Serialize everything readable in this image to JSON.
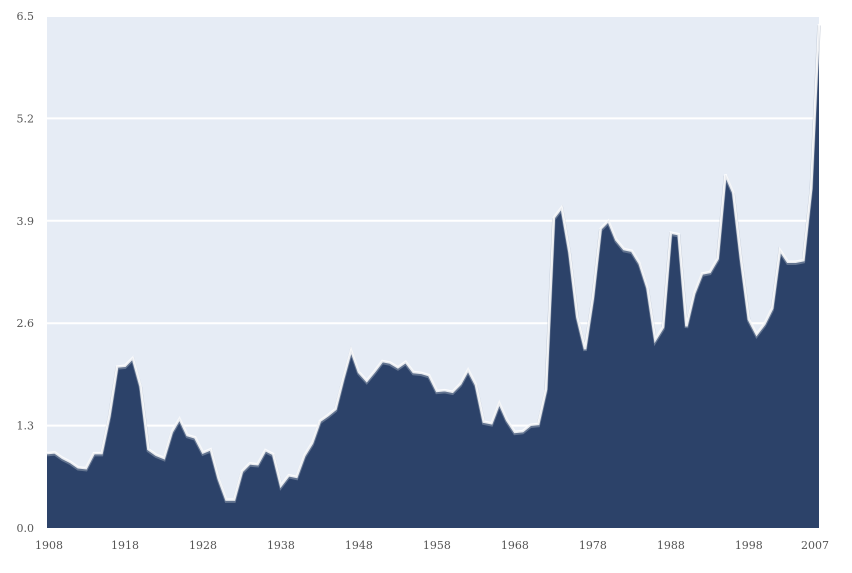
{
  "chart_data": {
    "type": "area",
    "title": "",
    "xlabel": "",
    "ylabel": "",
    "xlim": [
      1908,
      2007
    ],
    "ylim": [
      0,
      6.5
    ],
    "x_ticks": [
      "1908",
      "1918",
      "1928",
      "1938",
      "1948",
      "1958",
      "1968",
      "1978",
      "1988",
      "1998",
      "2007"
    ],
    "x_tick_values": [
      1908,
      1918,
      1928,
      1938,
      1948,
      1958,
      1968,
      1978,
      1988,
      1998,
      2007
    ],
    "y_ticks": [
      "0.0",
      "1.3",
      "2.6",
      "3.9",
      "5.2",
      "6.5"
    ],
    "y_tick_values": [
      0,
      1.3,
      2.6,
      3.9,
      5.2,
      6.5
    ],
    "grid": true,
    "colors": {
      "area": "#2c4269",
      "plot_background": "#e6ecf5",
      "grid": "#ffffff"
    },
    "x": [
      1908,
      1909,
      1910,
      1911,
      1912,
      1913,
      1914,
      1915,
      1916,
      1917,
      1918,
      1919,
      1920,
      1921,
      1922,
      1923,
      1924,
      1925,
      1926,
      1927,
      1928,
      1929,
      1930,
      1931,
      1932,
      1933,
      1934,
      1935,
      1936,
      1937,
      1938,
      1939,
      1940,
      1941,
      1942,
      1943,
      1944,
      1945,
      1946,
      1947,
      1948,
      1949,
      1950,
      1951,
      1952,
      1953,
      1954,
      1955,
      1956,
      1957,
      1958,
      1959,
      1960,
      1961,
      1962,
      1963,
      1964,
      1965,
      1966,
      1967,
      1968,
      1969,
      1970,
      1971,
      1972,
      1973,
      1974,
      1975,
      1976,
      1977,
      1978,
      1979,
      1980,
      1981,
      1982,
      1983,
      1984,
      1985,
      1986,
      1987,
      1988,
      1989,
      1990,
      1991,
      1992,
      1993,
      1994,
      1995,
      1996,
      1997,
      1998,
      1999,
      2000,
      2001,
      2002,
      2003,
      2004,
      2005,
      2006,
      2007
    ],
    "values": [
      0.95,
      0.96,
      0.89,
      0.84,
      0.77,
      0.76,
      0.95,
      0.95,
      1.42,
      2.05,
      2.06,
      2.16,
      1.8,
      1.0,
      0.93,
      0.89,
      1.22,
      1.39,
      1.18,
      1.15,
      0.96,
      1.0,
      0.63,
      0.36,
      0.36,
      0.72,
      0.82,
      0.81,
      0.99,
      0.94,
      0.54,
      0.67,
      0.65,
      0.92,
      1.08,
      1.36,
      1.43,
      1.51,
      1.9,
      2.26,
      1.98,
      1.87,
      1.99,
      2.12,
      2.1,
      2.04,
      2.11,
      1.98,
      1.97,
      1.94,
      1.74,
      1.75,
      1.73,
      1.83,
      2.01,
      1.82,
      1.35,
      1.33,
      1.59,
      1.37,
      1.22,
      1.23,
      1.31,
      1.32,
      1.76,
      3.94,
      4.07,
      3.5,
      2.68,
      2.27,
      2.92,
      3.8,
      3.9,
      3.66,
      3.54,
      3.52,
      3.36,
      3.05,
      2.39,
      2.55,
      3.75,
      3.73,
      2.56,
      2.98,
      3.23,
      3.25,
      3.42,
      4.49,
      4.26,
      3.41,
      2.65,
      2.46,
      2.59,
      2.79,
      3.53,
      3.38,
      3.38,
      3.4,
      4.31,
      6.4
    ]
  }
}
